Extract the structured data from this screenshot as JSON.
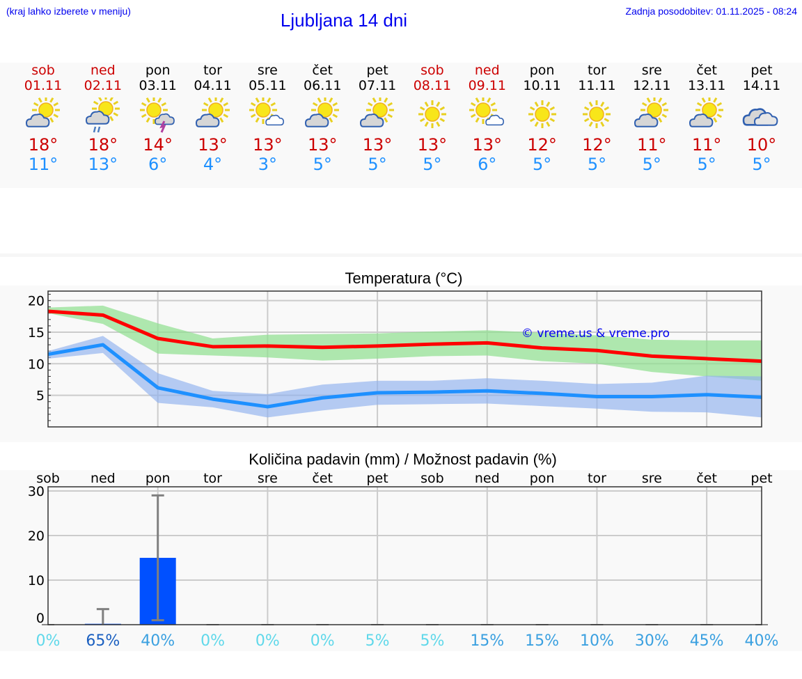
{
  "header": {
    "hint": "(kraj lahko izberete v meniju)",
    "title": "Ljubljana 14 dni",
    "updated": "Zadnja posodobitev: 01.11.2025 - 08:24"
  },
  "colors": {
    "weekend": "#cc0000",
    "weekday": "#000000",
    "max": "#cc0000",
    "min": "#1e90ff",
    "link": "#0000ee"
  },
  "days": [
    {
      "name": "sob",
      "date": "01.11",
      "weekend": true,
      "icon": "partly-cloudy-icon",
      "max": "18°",
      "min": "11°"
    },
    {
      "name": "ned",
      "date": "02.11",
      "weekend": true,
      "icon": "partly-cloudy-rain-icon",
      "max": "18°",
      "min": "13°"
    },
    {
      "name": "pon",
      "date": "03.11",
      "weekend": false,
      "icon": "sun-thunderstorm-icon",
      "max": "14°",
      "min": "6°"
    },
    {
      "name": "tor",
      "date": "04.11",
      "weekend": false,
      "icon": "partly-cloudy-icon",
      "max": "13°",
      "min": "4°"
    },
    {
      "name": "sre",
      "date": "05.11",
      "weekend": false,
      "icon": "sun-small-cloud-icon",
      "max": "13°",
      "min": "3°"
    },
    {
      "name": "čet",
      "date": "06.11",
      "weekend": false,
      "icon": "partly-cloudy-icon",
      "max": "13°",
      "min": "5°"
    },
    {
      "name": "pet",
      "date": "07.11",
      "weekend": false,
      "icon": "partly-cloudy-icon",
      "max": "13°",
      "min": "5°"
    },
    {
      "name": "sob",
      "date": "08.11",
      "weekend": true,
      "icon": "sun-icon",
      "max": "13°",
      "min": "5°"
    },
    {
      "name": "ned",
      "date": "09.11",
      "weekend": true,
      "icon": "sun-small-cloud-icon",
      "max": "13°",
      "min": "6°"
    },
    {
      "name": "pon",
      "date": "10.11",
      "weekend": false,
      "icon": "sun-icon",
      "max": "12°",
      "min": "5°"
    },
    {
      "name": "tor",
      "date": "11.11",
      "weekend": false,
      "icon": "sun-icon",
      "max": "12°",
      "min": "5°"
    },
    {
      "name": "sre",
      "date": "12.11",
      "weekend": false,
      "icon": "partly-cloudy-icon",
      "max": "11°",
      "min": "5°"
    },
    {
      "name": "čet",
      "date": "13.11",
      "weekend": false,
      "icon": "partly-cloudy-icon",
      "max": "11°",
      "min": "5°"
    },
    {
      "name": "pet",
      "date": "14.11",
      "weekend": false,
      "icon": "cloudy-icon",
      "max": "10°",
      "min": "5°"
    }
  ],
  "chart_data": [
    {
      "type": "line",
      "title": "Temperatura (°C)",
      "x": [
        "sob",
        "ned",
        "pon",
        "tor",
        "sre",
        "čet",
        "pet",
        "sob",
        "ned",
        "pon",
        "tor",
        "sre",
        "čet",
        "pet"
      ],
      "ylim": [
        0,
        21.5
      ],
      "yticks": [
        5,
        10,
        15,
        20
      ],
      "grid": true,
      "watermark": "© vreme.us & vreme.pro",
      "series": [
        {
          "color": "#ff0000",
          "values": [
            18.3,
            17.7,
            14.0,
            12.7,
            12.8,
            12.6,
            12.8,
            13.1,
            13.3,
            12.5,
            12.1,
            11.2,
            10.8,
            10.4
          ],
          "band_color": "#8fe08f",
          "band_upper": [
            18.9,
            19.2,
            16.4,
            14.0,
            14.6,
            14.7,
            14.8,
            15.1,
            15.3,
            14.9,
            14.5,
            13.8,
            13.7,
            13.7
          ],
          "band_lower": [
            18.0,
            16.3,
            11.6,
            11.3,
            11.0,
            10.5,
            10.8,
            11.2,
            11.3,
            10.4,
            10.0,
            8.7,
            8.0,
            7.3
          ]
        },
        {
          "color": "#1e90ff",
          "values": [
            11.5,
            13.0,
            6.2,
            4.4,
            3.2,
            4.6,
            5.4,
            5.5,
            5.7,
            5.3,
            4.8,
            4.8,
            5.1,
            4.7
          ],
          "band_color": "#8fb0ee",
          "band_upper": [
            12.0,
            14.4,
            8.5,
            5.7,
            5.2,
            6.7,
            7.3,
            7.3,
            7.7,
            7.3,
            6.8,
            7.0,
            8.1,
            8.0
          ],
          "band_lower": [
            10.8,
            11.7,
            3.8,
            3.1,
            1.5,
            2.6,
            3.5,
            3.6,
            3.7,
            3.3,
            2.9,
            2.4,
            2.3,
            1.5
          ]
        }
      ]
    },
    {
      "type": "bar",
      "title": "Količina padavin (mm) / Možnost padavin (%)",
      "categories": [
        "sob",
        "ned",
        "pon",
        "tor",
        "sre",
        "čet",
        "pet",
        "sob",
        "ned",
        "pon",
        "tor",
        "sre",
        "čet",
        "pet"
      ],
      "values": [
        0,
        0.2,
        15,
        0,
        0,
        0,
        0,
        0,
        0,
        0,
        0,
        0,
        0,
        0
      ],
      "error_high": [
        0,
        3.5,
        29,
        0,
        0,
        0,
        0,
        0,
        0,
        0,
        0,
        0,
        0,
        0
      ],
      "error_low": [
        0,
        0,
        1,
        0,
        0,
        0,
        0,
        0,
        0,
        0,
        0,
        0,
        0,
        0
      ],
      "ylim": [
        0,
        30
      ],
      "yticks": [
        0,
        10,
        20,
        30
      ],
      "grid": true,
      "bar_color": "#0050ff",
      "probabilities": [
        "0%",
        "65%",
        "40%",
        "0%",
        "0%",
        "0%",
        "5%",
        "5%",
        "15%",
        "15%",
        "10%",
        "30%",
        "45%",
        "40%"
      ]
    }
  ]
}
